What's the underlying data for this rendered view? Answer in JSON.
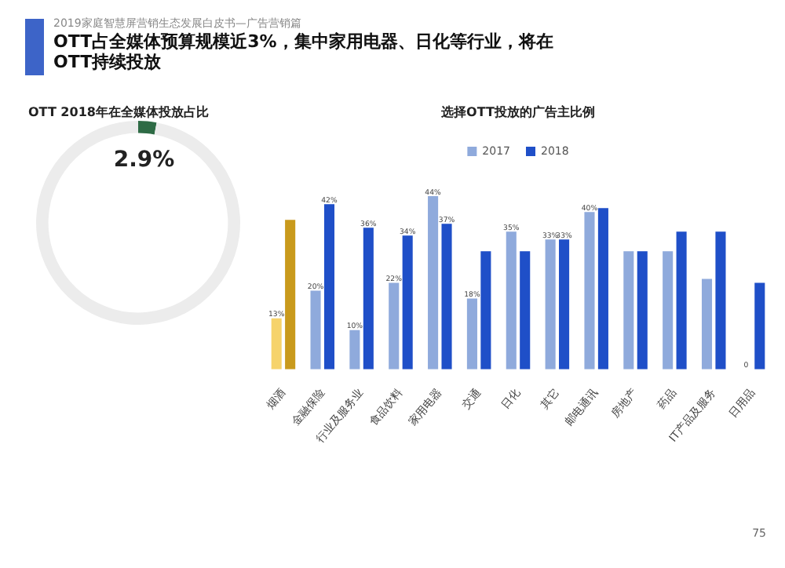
{
  "chart_data": [
    {
      "type": "donut",
      "title": "OTT 2018年在全媒体投放占比",
      "annotations": [
        "2019家庭智慧屏营销生态发展白皮书—广告营销篇",
        "OTT占全媒体预算规模近3%，集中家用电器、日化等行业，将在OTT持续投放"
      ],
      "categories": [
        null,
        null
      ],
      "values": [
        2.9,
        97.1
      ],
      "colors": [
        "#2e6b45",
        "#ececec"
      ],
      "value_labels": [
        "2.9%",
        null
      ],
      "legend": false
    },
    {
      "type": "bar",
      "title": "选择OTT投放的广告主比例",
      "categories": [
        "烟酒",
        "金融保险",
        "行业及服务业",
        "食品饮料",
        "家用电器",
        "交通",
        "日化",
        "其它",
        "邮电通讯",
        "房地产",
        "药品",
        "IT产品及服务",
        "日用品"
      ],
      "series": [
        {
          "name": "2017",
          "color": "#8faadc",
          "colors": [
            "#f6d36b",
            "#8faadc",
            "#8faadc",
            "#8faadc",
            "#8faadc",
            "#8faadc",
            "#8faadc",
            "#8faadc",
            "#8faadc",
            "#8faadc",
            "#8faadc",
            "#8faadc",
            "#8faadc"
          ],
          "values": [
            13,
            20,
            10,
            22,
            44,
            18,
            35,
            33,
            40,
            30,
            30,
            23,
            0
          ],
          "value_labels": [
            "13%",
            "20%",
            "10%",
            "22%",
            "44%",
            "18%",
            "35%",
            "33%",
            "40%",
            null,
            null,
            null,
            "0"
          ]
        },
        {
          "name": "2018",
          "color": "#1f4fc8",
          "colors": [
            "#c99a1c",
            "#1f4fc8",
            "#1f4fc8",
            "#1f4fc8",
            "#1f4fc8",
            "#1f4fc8",
            "#1f4fc8",
            "#1f4fc8",
            "#1f4fc8",
            "#1f4fc8",
            "#1f4fc8",
            "#1f4fc8",
            "#1f4fc8"
          ],
          "values": [
            38,
            42,
            36,
            34,
            37,
            30,
            30,
            33,
            41,
            30,
            35,
            35,
            22
          ],
          "value_labels": [
            null,
            "42%",
            "36%",
            "34%",
            "37%",
            null,
            null,
            "33%",
            null,
            null,
            null,
            null,
            null
          ]
        }
      ],
      "legend": "top",
      "grid": false,
      "annotations": [
        "75"
      ]
    }
  ]
}
